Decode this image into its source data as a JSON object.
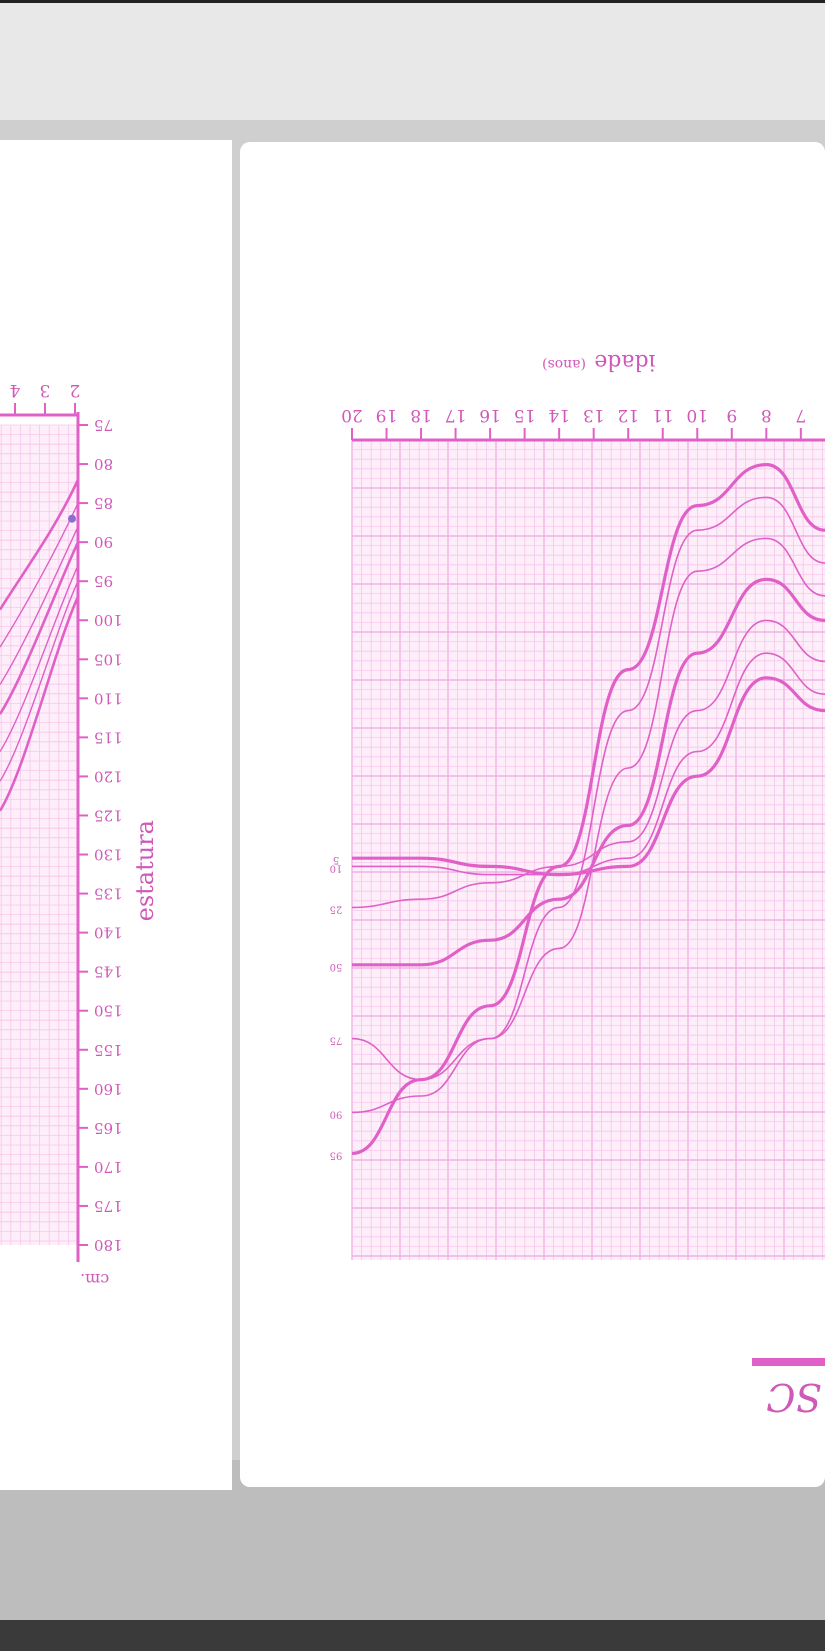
{
  "colors": {
    "background": "#cfcfcf",
    "page": "#ffffff",
    "curve": "#e060c8",
    "grid_minor": "#f6c8ec",
    "grid_major": "#eea8e0",
    "label": "#d058b8"
  },
  "left_chart": {
    "ylabel": "estatura",
    "unit": "cm.",
    "y_ticks": [
      "75",
      "80",
      "85",
      "90",
      "95",
      "100",
      "105",
      "110",
      "115",
      "120",
      "125",
      "130",
      "135",
      "140",
      "145",
      "150",
      "155",
      "160",
      "165",
      "170",
      "175",
      "180"
    ],
    "x_ticks": [
      "2",
      "3",
      "4"
    ]
  },
  "chart_data": {
    "type": "line",
    "xlabel": "idade",
    "xlabel_unit": "(anos)",
    "x_ticks": [
      "7",
      "8",
      "9",
      "10",
      "11",
      "12",
      "13",
      "14",
      "15",
      "16",
      "17",
      "18",
      "19",
      "20"
    ],
    "xlim": [
      6.3,
      20
    ],
    "series": [
      {
        "name": "95",
        "x": [
          6.3,
          8,
          10,
          12,
          14,
          16,
          18,
          20
        ],
        "y": [
          0.11,
          0.03,
          0.08,
          0.28,
          0.52,
          0.69,
          0.78,
          0.87
        ]
      },
      {
        "name": "90",
        "x": [
          6.3,
          8,
          10,
          12,
          14,
          16,
          18,
          20
        ],
        "y": [
          0.15,
          0.07,
          0.11,
          0.33,
          0.57,
          0.73,
          0.8,
          0.82
        ]
      },
      {
        "name": "75",
        "x": [
          6.3,
          8,
          10,
          12,
          14,
          16,
          18,
          20
        ],
        "y": [
          0.19,
          0.12,
          0.16,
          0.4,
          0.62,
          0.73,
          0.78,
          0.73
        ]
      },
      {
        "name": "50",
        "x": [
          6.3,
          8,
          10,
          12,
          14,
          16,
          18,
          20
        ],
        "y": [
          0.22,
          0.17,
          0.26,
          0.47,
          0.56,
          0.61,
          0.64,
          0.64
        ]
      },
      {
        "name": "25",
        "x": [
          6.3,
          8,
          10,
          12,
          14,
          16,
          18,
          20
        ],
        "y": [
          0.27,
          0.22,
          0.33,
          0.49,
          0.52,
          0.54,
          0.56,
          0.57
        ]
      },
      {
        "name": "10",
        "x": [
          6.3,
          8,
          10,
          12,
          14,
          16,
          18,
          20
        ],
        "y": [
          0.31,
          0.26,
          0.38,
          0.51,
          0.53,
          0.53,
          0.52,
          0.52
        ]
      },
      {
        "name": "5",
        "x": [
          6.3,
          8,
          10,
          12,
          14,
          16,
          18,
          20
        ],
        "y": [
          0.33,
          0.29,
          0.41,
          0.52,
          0.53,
          0.52,
          0.51,
          0.51
        ]
      }
    ],
    "grid": true,
    "legend": "percentile labels at right end of curves"
  },
  "footer_fragment": "SC"
}
